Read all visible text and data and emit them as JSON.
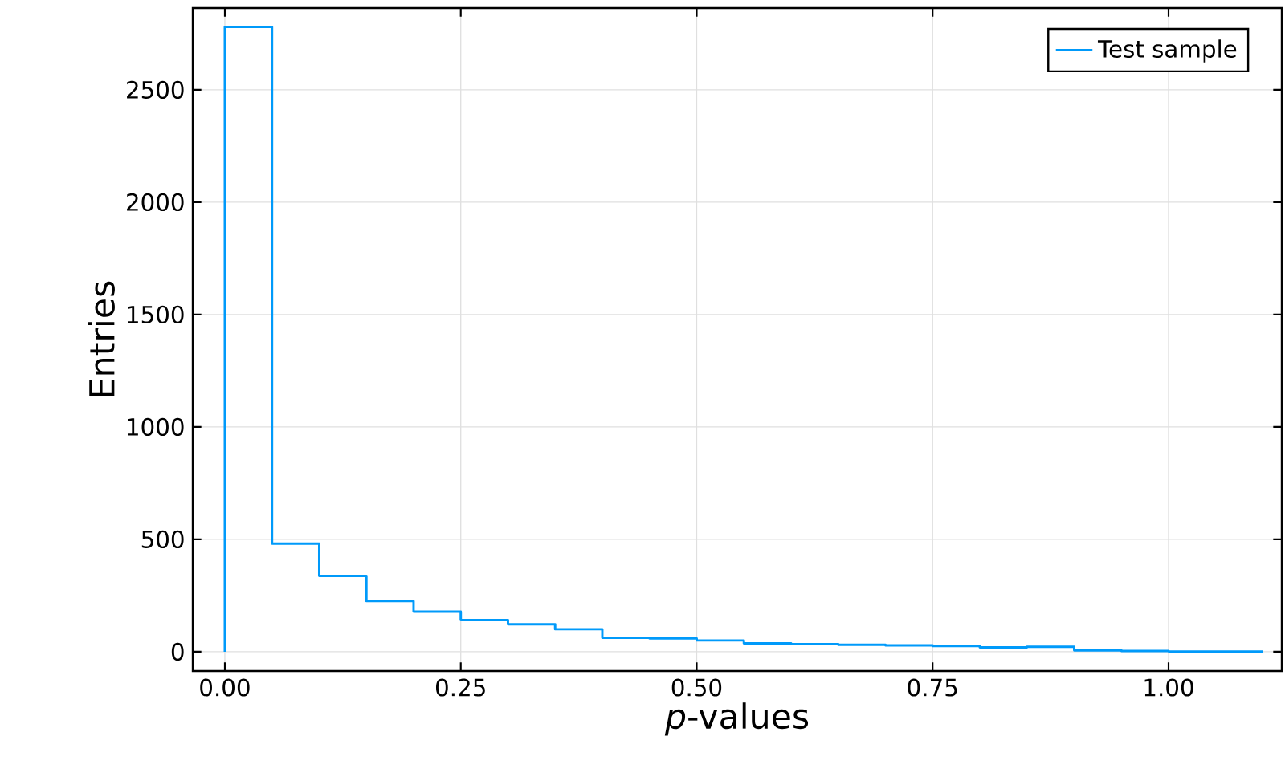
{
  "chart_data": {
    "type": "histogram",
    "xlabel": "*p*-values",
    "ylabel": "Entries",
    "bins": [
      0,
      0.05,
      0.1,
      0.15,
      0.2,
      0.25,
      0.3,
      0.35,
      0.4,
      0.45,
      0.5,
      0.55,
      0.6,
      0.65,
      0.7,
      0.75,
      0.8,
      0.85,
      0.9,
      0.95,
      1.0,
      1.05,
      1.1
    ],
    "series": [
      {
        "name": "Test sample",
        "color": "#009afa",
        "values": [
          2780,
          481,
          337,
          225,
          178,
          141,
          122,
          100,
          62,
          59,
          50,
          37,
          34,
          31,
          28,
          25,
          19,
          22,
          6,
          3,
          1,
          1
        ]
      }
    ],
    "xlim": [
      -0.034,
      1.12
    ],
    "ylim": [
      -86,
      2864
    ],
    "xticks": [
      {
        "value": 0,
        "label": "0.00"
      },
      {
        "value": 0.25,
        "label": "0.25"
      },
      {
        "value": 0.5,
        "label": "0.50"
      },
      {
        "value": 0.75,
        "label": "0.75"
      },
      {
        "value": 1.0,
        "label": "1.00"
      }
    ],
    "yticks": [
      0,
      500,
      1000,
      1500,
      2000,
      2500
    ],
    "grid": true,
    "legend": "top right"
  }
}
